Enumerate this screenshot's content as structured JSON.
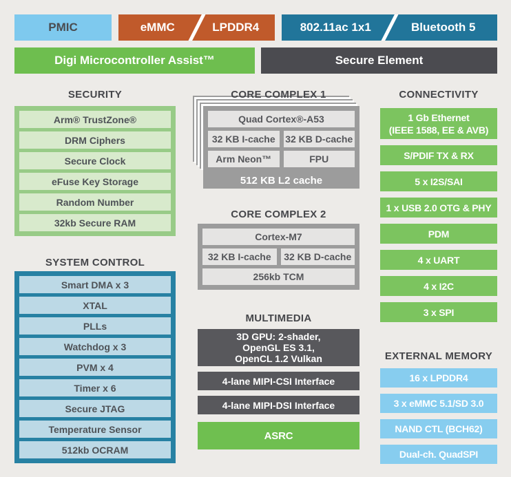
{
  "colors": {
    "background": "#EDEBE8",
    "pmic_blue": "#7EC9EE",
    "memory_orange": "#C05A2B",
    "wireless_teal": "#21759A",
    "brand_green": "#6EBE4F",
    "connectivity_green": "#7CC45F",
    "dark_banner_gray": "#4B4B50",
    "multimedia_gray": "#58585C",
    "core_gray": "#9C9C9C",
    "security_panel_green": "#98CB87",
    "security_item_green": "#D8EACC",
    "system_panel_teal": "#2781A3",
    "system_item_blue": "#BCD9E6",
    "external_memory_blue": "#87CDEF",
    "text_dark": "#54565A"
  },
  "top_row": {
    "pmic": "PMIC",
    "emmc": "eMMC",
    "lpddr4": "LPDDR4",
    "wifi": "802.11ac 1x1",
    "bluetooth": "Bluetooth 5"
  },
  "banner_row": {
    "digi_assist": "Digi Microcontroller Assist™",
    "secure_element": "Secure Element"
  },
  "security": {
    "title": "SECURITY",
    "items": [
      "Arm® TrustZone®",
      "DRM Ciphers",
      "Secure Clock",
      "eFuse Key Storage",
      "Random Number",
      "32kb Secure RAM"
    ]
  },
  "system_control": {
    "title": "SYSTEM CONTROL",
    "items": [
      "Smart DMA x 3",
      "XTAL",
      "PLLs",
      "Watchdog x 3",
      "PVM x 4",
      "Timer x 6",
      "Secure JTAG",
      "Temperature Sensor",
      "512kb OCRAM"
    ]
  },
  "core_complex_1": {
    "title": "CORE COMPLEX 1",
    "cpu": "Quad Cortex®-A53",
    "icache": "32 KB I-cache",
    "dcache": "32 KB D-cache",
    "neon": "Arm Neon™",
    "fpu": "FPU",
    "l2_cache": "512 KB L2 cache"
  },
  "core_complex_2": {
    "title": "CORE COMPLEX 2",
    "cpu": "Cortex-M7",
    "icache": "32 KB I-cache",
    "dcache": "32 KB D-cache",
    "tcm": "256kb TCM"
  },
  "multimedia": {
    "title": "MULTIMEDIA",
    "gpu": {
      "line1": "3D GPU: 2-shader,",
      "line2": "OpenGL ES 3.1,",
      "line3": "OpenCL 1.2 Vulkan"
    },
    "csi": "4-lane MIPI-CSI Interface",
    "dsi": "4-lane MIPI-DSI Interface",
    "asrc": "ASRC"
  },
  "connectivity": {
    "title": "CONNECTIVITY",
    "ethernet": {
      "line1": "1 Gb Ethernet",
      "line2": "(IEEE 1588, EE & AVB)"
    },
    "items": [
      "S/PDIF TX & RX",
      "5 x I2S/SAI",
      "1 x USB 2.0 OTG & PHY",
      "PDM",
      "4 x UART",
      "4 x I2C",
      "3 x SPI"
    ]
  },
  "external_memory": {
    "title": "EXTERNAL MEMORY",
    "items": [
      "16 x LPDDR4",
      "3 x eMMC 5.1/SD 3.0",
      "NAND CTL (BCH62)",
      "Dual-ch. QuadSPI"
    ]
  }
}
